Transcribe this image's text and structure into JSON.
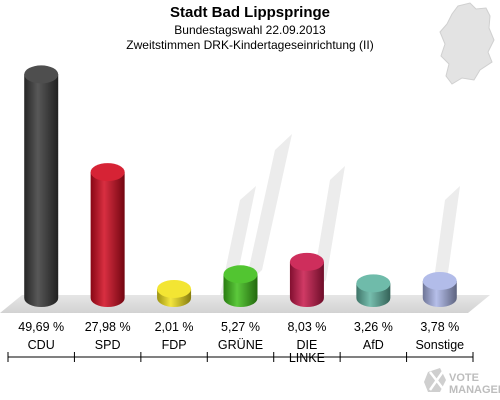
{
  "header": {
    "title": "Stadt Bad Lippspringe",
    "line2": "Bundestagswahl 22.09.2013",
    "line3": "Zweitstimmen DRK-Kindertageseinrichtung (II)"
  },
  "chart_data": {
    "type": "bar",
    "title": "Stadt Bad Lippspringe",
    "categories": [
      "CDU",
      "SPD",
      "FDP",
      "GRÜNE",
      "DIE LINKE",
      "AfD",
      "Sonstige"
    ],
    "category_lines": [
      [
        "CDU"
      ],
      [
        "SPD"
      ],
      [
        "FDP"
      ],
      [
        "GRÜNE"
      ],
      [
        "DIE",
        "LINKE"
      ],
      [
        "AfD"
      ],
      [
        "Sonstige"
      ]
    ],
    "values": [
      49.69,
      27.98,
      2.01,
      5.27,
      8.03,
      3.26,
      3.78
    ],
    "value_labels": [
      "49,69 %",
      "27,98 %",
      "2,01 %",
      "5,27 %",
      "8,03 %",
      "3,26 %",
      "3,78 %"
    ],
    "colors": [
      "#3a3a3a",
      "#d10a1f",
      "#f2e21c",
      "#3fbf1a",
      "#c8174a",
      "#5fb3a0",
      "#a9b4e6"
    ],
    "ylim": [
      0,
      50
    ],
    "grid": false,
    "legend": "none"
  },
  "watermark": {
    "line1": "VOTE",
    "line2": "MANAGER"
  },
  "map_icon": "germany-map-icon"
}
